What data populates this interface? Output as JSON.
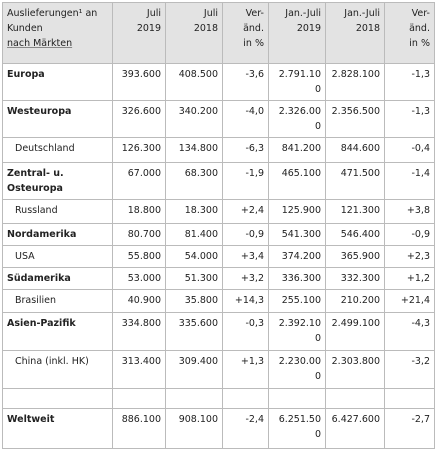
{
  "header": {
    "label_lines": [
      "Auslieferungen¹ an Kunden",
      "nach Märkten"
    ],
    "columns": [
      [
        "Juli",
        "2019"
      ],
      [
        "Juli",
        "2018"
      ],
      [
        "Ver-",
        "änd.",
        "in %"
      ],
      [
        "Jan.-Juli",
        "2019"
      ],
      [
        "Jan.-Juli",
        "2018"
      ],
      [
        "Ver-",
        "änd.",
        "in %"
      ]
    ]
  },
  "table": {
    "rows": [
      {
        "label": "Europa",
        "cells": [
          "393.600",
          "408.500",
          "-3,6",
          "2.791.100",
          "2.828.100",
          "-1,3"
        ]
      },
      {
        "label": "Westeuropa",
        "cells": [
          "326.600",
          "340.200",
          "-4,0",
          "2.326.000",
          "2.356.500",
          "-1,3"
        ]
      },
      {
        "label": "Deutschland",
        "cells": [
          "126.300",
          "134.800",
          "-6,3",
          "841.200",
          "844.600",
          "-0,4"
        ]
      },
      {
        "label": "Zentral- u. Osteuropa",
        "cells": [
          "67.000",
          "68.300",
          "-1,9",
          "465.100",
          "471.500",
          "-1,4"
        ]
      },
      {
        "label": "Russland",
        "cells": [
          "18.800",
          "18.300",
          "+2,4",
          "125.900",
          "121.300",
          "+3,8"
        ]
      },
      {
        "label": "Nordamerika",
        "cells": [
          "80.700",
          "81.400",
          "-0,9",
          "541.300",
          "546.400",
          "-0,9"
        ]
      },
      {
        "label": "USA",
        "cells": [
          "55.800",
          "54.000",
          "+3,4",
          "374.200",
          "365.900",
          "+2,3"
        ]
      },
      {
        "label": "Südamerika",
        "cells": [
          "53.000",
          "51.300",
          "+3,2",
          "336.300",
          "332.300",
          "+1,2"
        ]
      },
      {
        "label": "Brasilien",
        "cells": [
          "40.900",
          "35.800",
          "+14,3",
          "255.100",
          "210.200",
          "+21,4"
        ]
      },
      {
        "label": "Asien-Pazifik",
        "cells": [
          "334.800",
          "335.600",
          "-0,3",
          "2.392.100",
          "2.499.100",
          "-4,3"
        ]
      },
      {
        "label": "China (inkl. HK)",
        "cells": [
          "313.400",
          "309.400",
          "+1,3",
          "2.230.000",
          "2.303.800",
          "-3,2"
        ]
      },
      {
        "label": "Weltweit",
        "cells": [
          "886.100",
          "908.100",
          "-2,4",
          "6.251.500",
          "6.427.600",
          "-2,7"
        ]
      }
    ]
  }
}
